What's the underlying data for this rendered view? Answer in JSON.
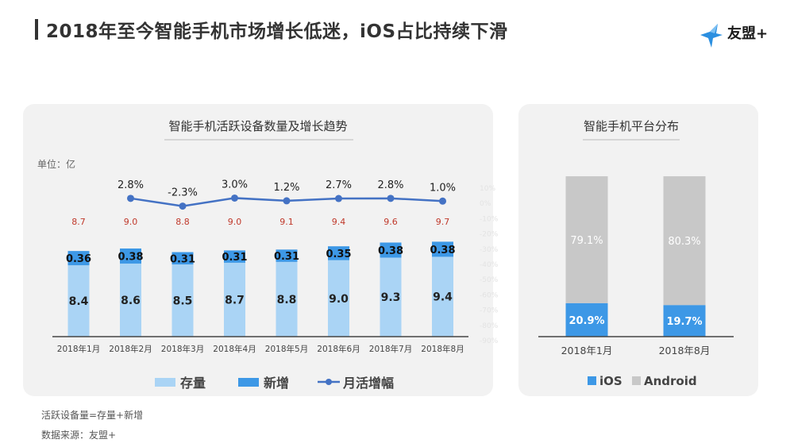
{
  "header": {
    "title": "2018年至今智能手机市场增长低迷，iOS占比持续下滑",
    "logo_text": "友盟+"
  },
  "colors": {
    "stock": "#aad4f5",
    "new": "#3d98e6",
    "line": "#4472c4",
    "label_red": "#c0392b",
    "ios": "#3d98e6",
    "android": "#c8c8c8",
    "panel": "#f2f2f2"
  },
  "chart_data": [
    {
      "type": "bar",
      "title": "智能手机活跃设备数量及增长趋势",
      "unit_label": "单位：亿",
      "categories": [
        "2018年1月",
        "2018年2月",
        "2018年3月",
        "2018年4月",
        "2018年5月",
        "2018年6月",
        "2018年7月",
        "2018年8月"
      ],
      "series": [
        {
          "name": "存量",
          "values": [
            8.4,
            8.6,
            8.5,
            8.7,
            8.8,
            9.0,
            9.3,
            9.4
          ]
        },
        {
          "name": "新增",
          "values": [
            0.36,
            0.38,
            0.31,
            0.31,
            0.31,
            0.35,
            0.38,
            0.38
          ]
        }
      ],
      "totals": [
        "8.7",
        "9.0",
        "8.8",
        "9.0",
        "9.1",
        "9.4",
        "9.6",
        "9.7"
      ],
      "line_series": {
        "name": "月活增幅",
        "values": [
          null,
          2.8,
          -2.3,
          3.0,
          1.2,
          2.7,
          2.8,
          1.0
        ],
        "labels": [
          "",
          "2.8%",
          "-2.3%",
          "3.0%",
          "1.2%",
          "2.7%",
          "2.8%",
          "1.0%"
        ]
      },
      "secondary_axis_ticks": [
        "10%",
        "0%",
        "-10%",
        "-20%",
        "-30%",
        "-40%",
        "-50%",
        "-60%",
        "-70%",
        "-80%",
        "-90%"
      ],
      "ylim": [
        0,
        10.5
      ],
      "legend": [
        "存量",
        "新增",
        "月活增幅"
      ]
    },
    {
      "type": "bar",
      "title": "智能手机平台分布",
      "categories": [
        "2018年1月",
        "2018年8月"
      ],
      "series": [
        {
          "name": "iOS",
          "values": [
            20.9,
            19.7
          ],
          "labels": [
            "20.9%",
            "19.7%"
          ]
        },
        {
          "name": "Android",
          "values": [
            79.1,
            80.3
          ],
          "labels": [
            "79.1%",
            "80.3%"
          ]
        }
      ],
      "stacked": true,
      "ylim": [
        0,
        100
      ],
      "legend": [
        "iOS",
        "Android"
      ]
    }
  ],
  "footnotes": {
    "note": "活跃设备量=存量+新增",
    "source": "数据来源：友盟+"
  }
}
